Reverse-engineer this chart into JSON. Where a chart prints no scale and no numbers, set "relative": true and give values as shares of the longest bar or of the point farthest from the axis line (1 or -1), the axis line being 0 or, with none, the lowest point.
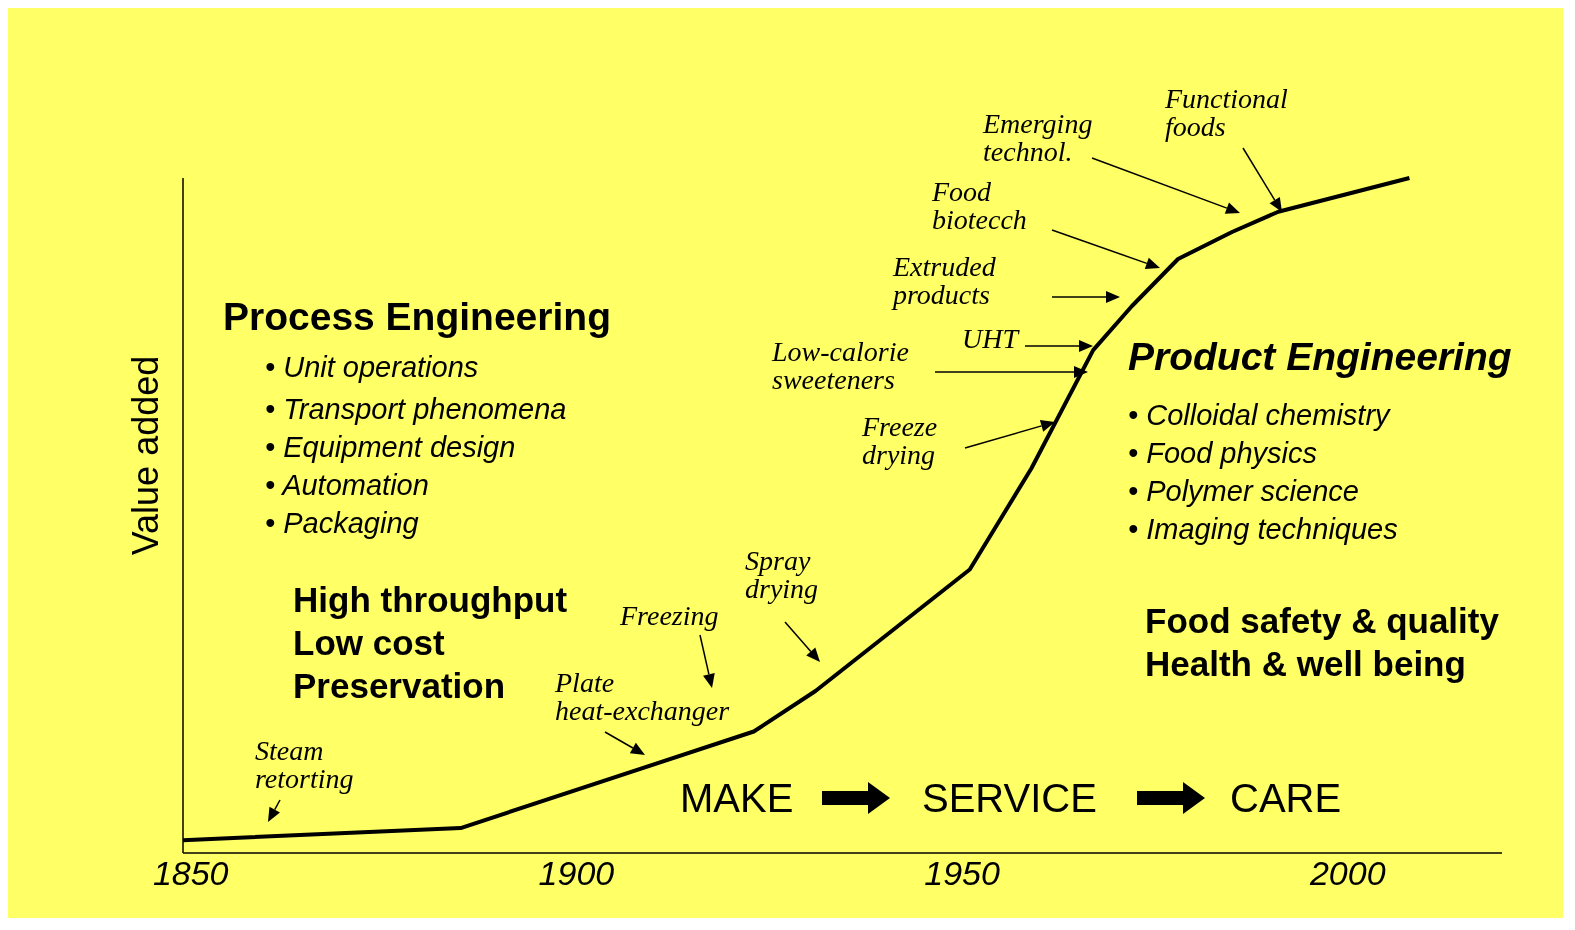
{
  "chart_data": {
    "type": "line",
    "ylabel": "Value added",
    "relative": true,
    "color": "#000000",
    "marker": "none",
    "line_style": "solid",
    "x": [
      1849,
      1885,
      1923,
      1931,
      1951,
      1959,
      1967,
      1972,
      1978,
      1985,
      1991,
      2008
    ],
    "values": [
      0.019,
      0.037,
      0.18,
      0.24,
      0.42,
      0.57,
      0.745,
      0.81,
      0.88,
      0.92,
      0.95,
      1
    ],
    "xlim": [
      1849,
      2020
    ],
    "xticks": [
      1850,
      1900,
      1950,
      2000
    ],
    "annotations": [
      "Steam\nretorting",
      "Plate\nheat-exchanger",
      "Freezing",
      "Spray\ndrying",
      "Freeze\ndrying",
      "Low-calorie\nsweeteners",
      "UHT",
      "Extruded\nproducts",
      "Food\nbiotecch",
      "Emerging\ntechnol.",
      "Functional\nfoods",
      "Process Engineering",
      "• Unit operations",
      "• Transport phenomena",
      "• Equipment design",
      "• Automation",
      "• Packaging",
      "High throughput",
      "Low cost",
      "Preservation",
      "Product Engineering",
      "• Colloidal chemistry",
      "• Food physics",
      "• Polymer science",
      "• Imaging techniques",
      "Food safety & quality",
      "Health & well being",
      "MAKE",
      "SERVICE",
      "CARE"
    ]
  }
}
